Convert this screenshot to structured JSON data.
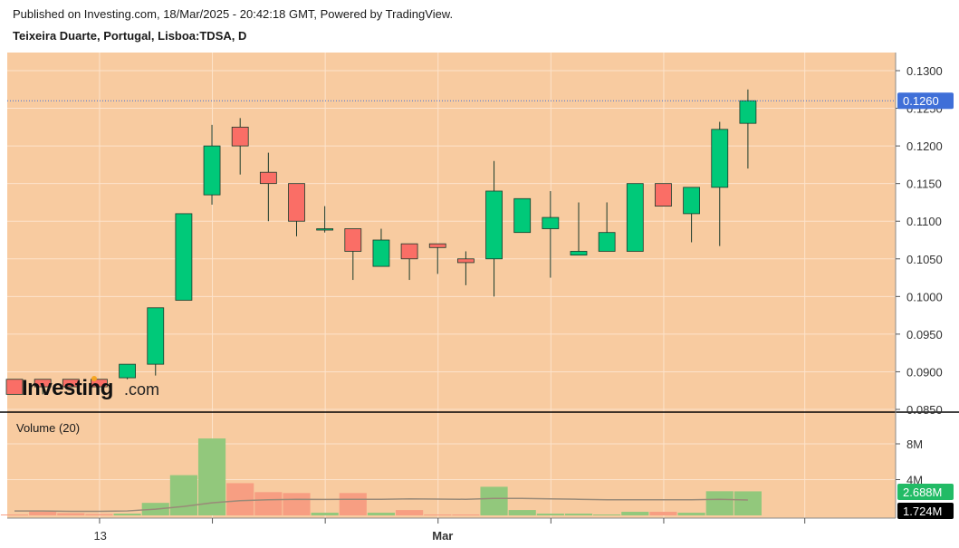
{
  "header": {
    "published": "Published on Investing.com, 18/Mar/2025 - 20:42:18 GMT, Powered by TradingView.",
    "symbol": "Teixeira Duarte, Portugal, Lisboa:TDSA, D"
  },
  "logo": {
    "main": "Investing",
    "suffix": ".com"
  },
  "colors": {
    "background": "#f8cba0",
    "grid": "#fde3cb",
    "up": "#00c979",
    "down": "#fa6e66",
    "candle_outline": "#1a3a2a",
    "price_line": "#3f6fd8",
    "price_label_bg": "#3f6fd8",
    "volume_up": "#92c87c",
    "volume_down": "#f79e82",
    "volume_ma": "#9a8a78",
    "volume_label_up": "#22bb66",
    "volume_label_ma": "#000000"
  },
  "chart_data": {
    "type": "candlestick",
    "price_axis": {
      "min": 0.085,
      "max": 0.13,
      "ticks": [
        "0.1300",
        "0.1250",
        "0.1200",
        "0.1150",
        "0.1100",
        "0.1050",
        "0.1000",
        "0.0950",
        "0.0900",
        "0.0850"
      ]
    },
    "current_price": "0.1260",
    "x_labels": [
      {
        "label": "13",
        "index": 3
      },
      {
        "label": "Mar",
        "index": 15
      }
    ],
    "candles": [
      {
        "o": 0.089,
        "h": 0.089,
        "l": 0.087,
        "c": 0.087
      },
      {
        "o": 0.089,
        "h": 0.089,
        "l": 0.087,
        "c": 0.088
      },
      {
        "o": 0.089,
        "h": 0.089,
        "l": 0.088,
        "c": 0.088
      },
      {
        "o": 0.089,
        "h": 0.089,
        "l": 0.088,
        "c": 0.088
      },
      {
        "o": 0.0892,
        "h": 0.091,
        "l": 0.089,
        "c": 0.091
      },
      {
        "o": 0.091,
        "h": 0.0985,
        "l": 0.0895,
        "c": 0.0985
      },
      {
        "o": 0.0995,
        "h": 0.111,
        "l": 0.0995,
        "c": 0.111
      },
      {
        "o": 0.1135,
        "h": 0.1228,
        "l": 0.1122,
        "c": 0.12
      },
      {
        "o": 0.1225,
        "h": 0.1237,
        "l": 0.1162,
        "c": 0.12
      },
      {
        "o": 0.1165,
        "h": 0.1191,
        "l": 0.11,
        "c": 0.115
      },
      {
        "o": 0.115,
        "h": 0.115,
        "l": 0.108,
        "c": 0.11
      },
      {
        "o": 0.109,
        "h": 0.112,
        "l": 0.1085,
        "c": 0.109
      },
      {
        "o": 0.109,
        "h": 0.109,
        "l": 0.1022,
        "c": 0.106
      },
      {
        "o": 0.104,
        "h": 0.109,
        "l": 0.104,
        "c": 0.1075
      },
      {
        "o": 0.107,
        "h": 0.107,
        "l": 0.1022,
        "c": 0.105
      },
      {
        "o": 0.107,
        "h": 0.107,
        "l": 0.103,
        "c": 0.1065
      },
      {
        "o": 0.105,
        "h": 0.106,
        "l": 0.1015,
        "c": 0.1045
      },
      {
        "o": 0.105,
        "h": 0.118,
        "l": 0.1,
        "c": 0.114
      },
      {
        "o": 0.1085,
        "h": 0.113,
        "l": 0.1085,
        "c": 0.113
      },
      {
        "o": 0.109,
        "h": 0.114,
        "l": 0.1025,
        "c": 0.1105
      },
      {
        "o": 0.1055,
        "h": 0.1125,
        "l": 0.1055,
        "c": 0.106
      },
      {
        "o": 0.106,
        "h": 0.1125,
        "l": 0.106,
        "c": 0.1085
      },
      {
        "o": 0.106,
        "h": 0.115,
        "l": 0.106,
        "c": 0.115
      },
      {
        "o": 0.115,
        "h": 0.115,
        "l": 0.112,
        "c": 0.112
      },
      {
        "o": 0.111,
        "h": 0.1145,
        "l": 0.1072,
        "c": 0.1145
      },
      {
        "o": 0.1145,
        "h": 0.1232,
        "l": 0.1067,
        "c": 0.1222
      },
      {
        "o": 0.123,
        "h": 0.1275,
        "l": 0.117,
        "c": 0.126
      }
    ],
    "volume": {
      "title": "Volume (20)",
      "axis_ticks": [
        "8M",
        "4M"
      ],
      "axis_max": 10000000,
      "last_volume_label": "2.688M",
      "ma_label": "1.724M",
      "values": [
        0.1,
        0.4,
        0.25,
        0.15,
        0.2,
        1.4,
        4.5,
        8.6,
        3.6,
        2.6,
        2.5,
        0.3,
        2.5,
        0.3,
        0.6,
        0.1,
        0.1,
        3.2,
        0.6,
        0.2,
        0.2,
        0.1,
        0.4,
        0.4,
        0.3,
        2.7,
        2.688
      ],
      "ma": [
        0.5,
        0.5,
        0.45,
        0.45,
        0.5,
        0.7,
        1.0,
        1.4,
        1.65,
        1.75,
        1.8,
        1.78,
        1.8,
        1.8,
        1.85,
        1.82,
        1.8,
        1.9,
        1.9,
        1.85,
        1.8,
        1.75,
        1.75,
        1.75,
        1.75,
        1.8,
        1.724
      ]
    }
  }
}
